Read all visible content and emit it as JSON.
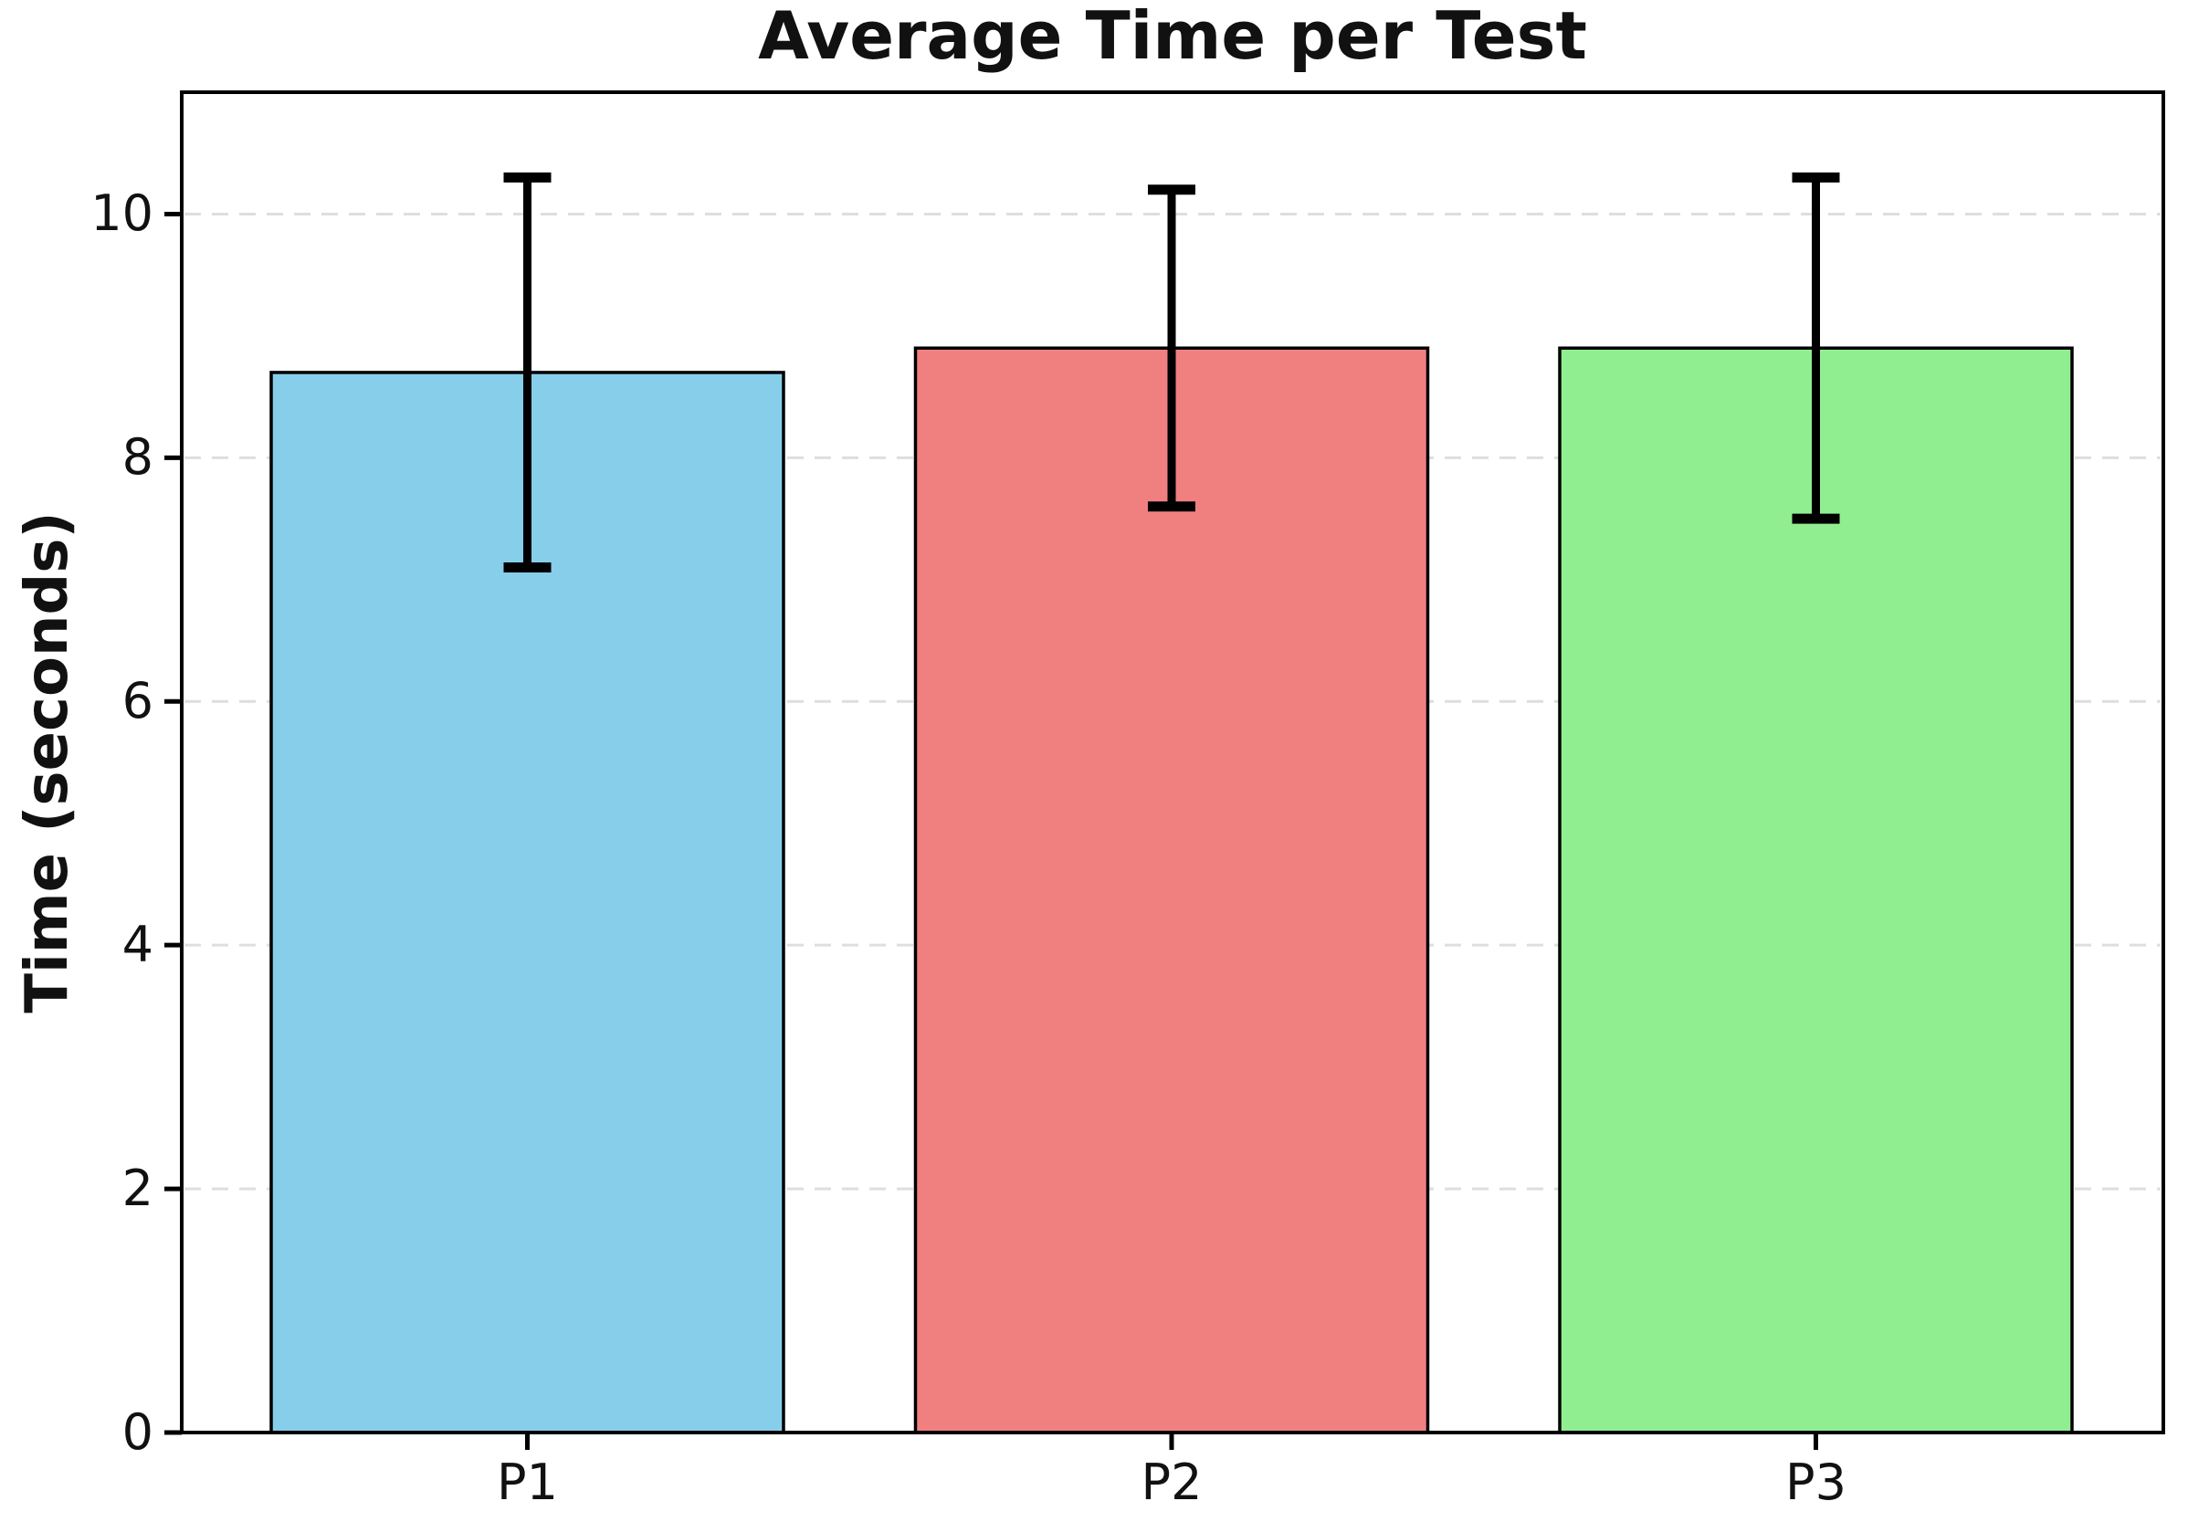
{
  "chart_data": {
    "type": "bar",
    "title": "Average Time per Test",
    "xlabel": "",
    "ylabel": "Time (seconds)",
    "categories": [
      "P1",
      "P2",
      "P3"
    ],
    "values": [
      8.7,
      8.9,
      8.9
    ],
    "error_bars": {
      "symmetric": true,
      "errors": [
        1.6,
        1.3,
        1.4
      ],
      "low": [
        7.1,
        7.6,
        7.5
      ],
      "high": [
        10.3,
        10.2,
        10.3
      ]
    },
    "bar_colors": [
      "#87CEEB",
      "#F08080",
      "#90EE90"
    ],
    "bar_edge_color": "#000000",
    "error_bar_color": "#000000",
    "y_ticks": [
      0,
      2,
      4,
      6,
      8,
      10
    ],
    "ylim": [
      0,
      11
    ],
    "grid": {
      "axis": "y",
      "style": "dashed",
      "color": "#dedede",
      "behind_bars": true
    },
    "legend": "none",
    "background_color": "#ffffff",
    "spine_color": "#000000"
  }
}
